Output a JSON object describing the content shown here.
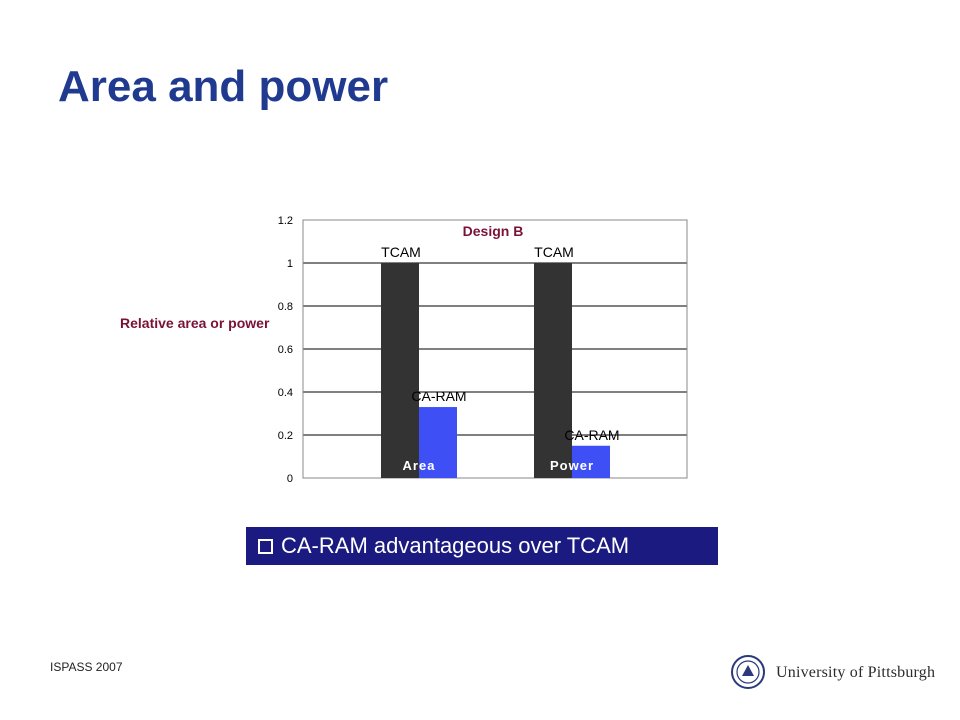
{
  "slide": {
    "title": "Area and power",
    "callout": "CA-RAM advantageous over TCAM",
    "footer_left": "ISPASS 2007",
    "logo_text": "University of Pittsburgh"
  },
  "colors": {
    "title": "#1f3a8f",
    "tcam_bar": "#333333",
    "caram_bar": "#3e50f5",
    "label_maroon": "#7a1238",
    "callout_bg": "#1a1a80"
  },
  "chart_data": {
    "type": "bar",
    "title": "Design B",
    "ylabel": "Relative area or power",
    "ylim": [
      0,
      1.2
    ],
    "yticks": [
      "0",
      "0.2",
      "0.4",
      "0.6",
      "0.8",
      "1",
      "1.2"
    ],
    "grid": true,
    "categories": [
      "Area",
      "Power"
    ],
    "series": [
      {
        "name": "TCAM",
        "values": [
          1.0,
          1.0
        ]
      },
      {
        "name": "CA-RAM",
        "values": [
          0.33,
          0.15
        ]
      }
    ]
  }
}
